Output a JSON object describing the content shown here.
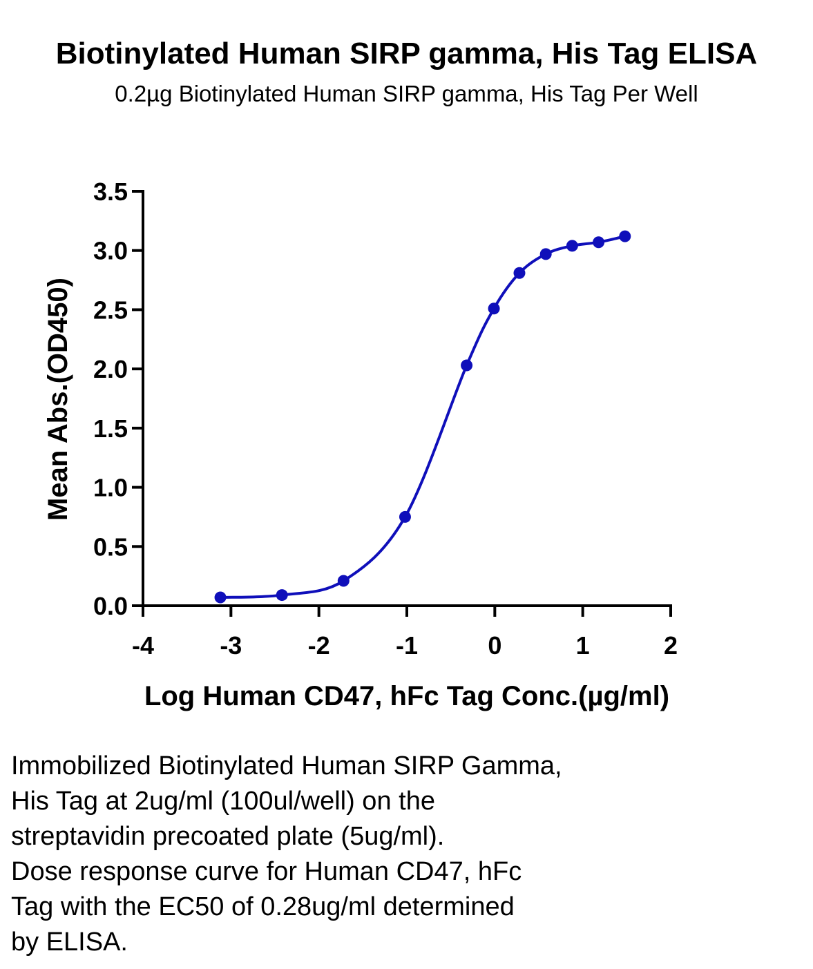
{
  "title": "Biotinylated Human SIRP gamma, His Tag ELISA",
  "subtitle": "0.2µg Biotinylated Human SIRP gamma, His Tag Per Well",
  "chart_data": {
    "type": "scatter",
    "xlabel": "Log Human CD47, hFc Tag Conc.(µg/ml)",
    "ylabel": "Mean Abs.(OD450)",
    "xlim": [
      -4,
      2
    ],
    "ylim": [
      0,
      3.5
    ],
    "x_ticks": [
      -4,
      -3,
      -2,
      -1,
      0,
      1,
      2
    ],
    "x_tick_labels": [
      "-4",
      "-3",
      "-2",
      "-1",
      "0",
      "1",
      "2"
    ],
    "y_ticks": [
      0,
      0.5,
      1,
      1.5,
      2,
      2.5,
      3,
      3.5
    ],
    "y_tick_labels": [
      "0.0",
      "0.5",
      "1.0",
      "1.5",
      "2.0",
      "2.5",
      "3.0",
      "3.5"
    ],
    "grid": false,
    "series": [
      {
        "x": [
          -3.12,
          -2.42,
          -1.72,
          -1.02,
          -0.32,
          -0.01,
          0.28,
          0.58,
          0.88,
          1.18,
          1.48
        ],
        "y": [
          0.07,
          0.09,
          0.21,
          0.75,
          2.03,
          2.51,
          2.81,
          2.97,
          3.04,
          3.07,
          3.12
        ],
        "color": "#0f0fba",
        "fit": "four-parameter logistic"
      }
    ]
  },
  "caption": [
    "Immobilized Biotinylated Human SIRP Gamma,",
    "His Tag at 2ug/ml (100ul/well) on the",
    "streptavidin precoated plate (5ug/ml).",
    "Dose response curve for Human CD47, hFc",
    "Tag with the EC50 of 0.28ug/ml determined",
    "by ELISA."
  ]
}
